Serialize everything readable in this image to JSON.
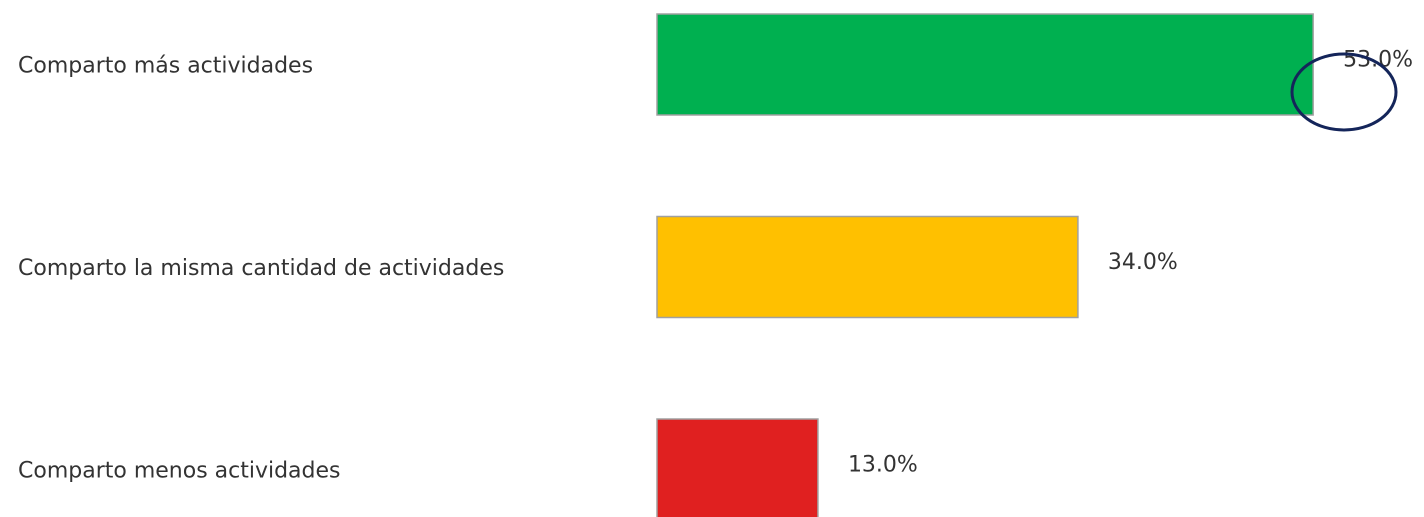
{
  "chart_data": {
    "type": "barh",
    "categories": [
      "Comparto más actividades",
      "Comparto la misma cantidad de actividades",
      "Comparto menos actividades"
    ],
    "values": [
      53,
      34,
      13
    ],
    "value_labels": [
      "53.0%",
      "34.0%",
      "13.0%"
    ],
    "colors": [
      "#00b050",
      "#ffc000",
      "#e02020"
    ]
  }
}
